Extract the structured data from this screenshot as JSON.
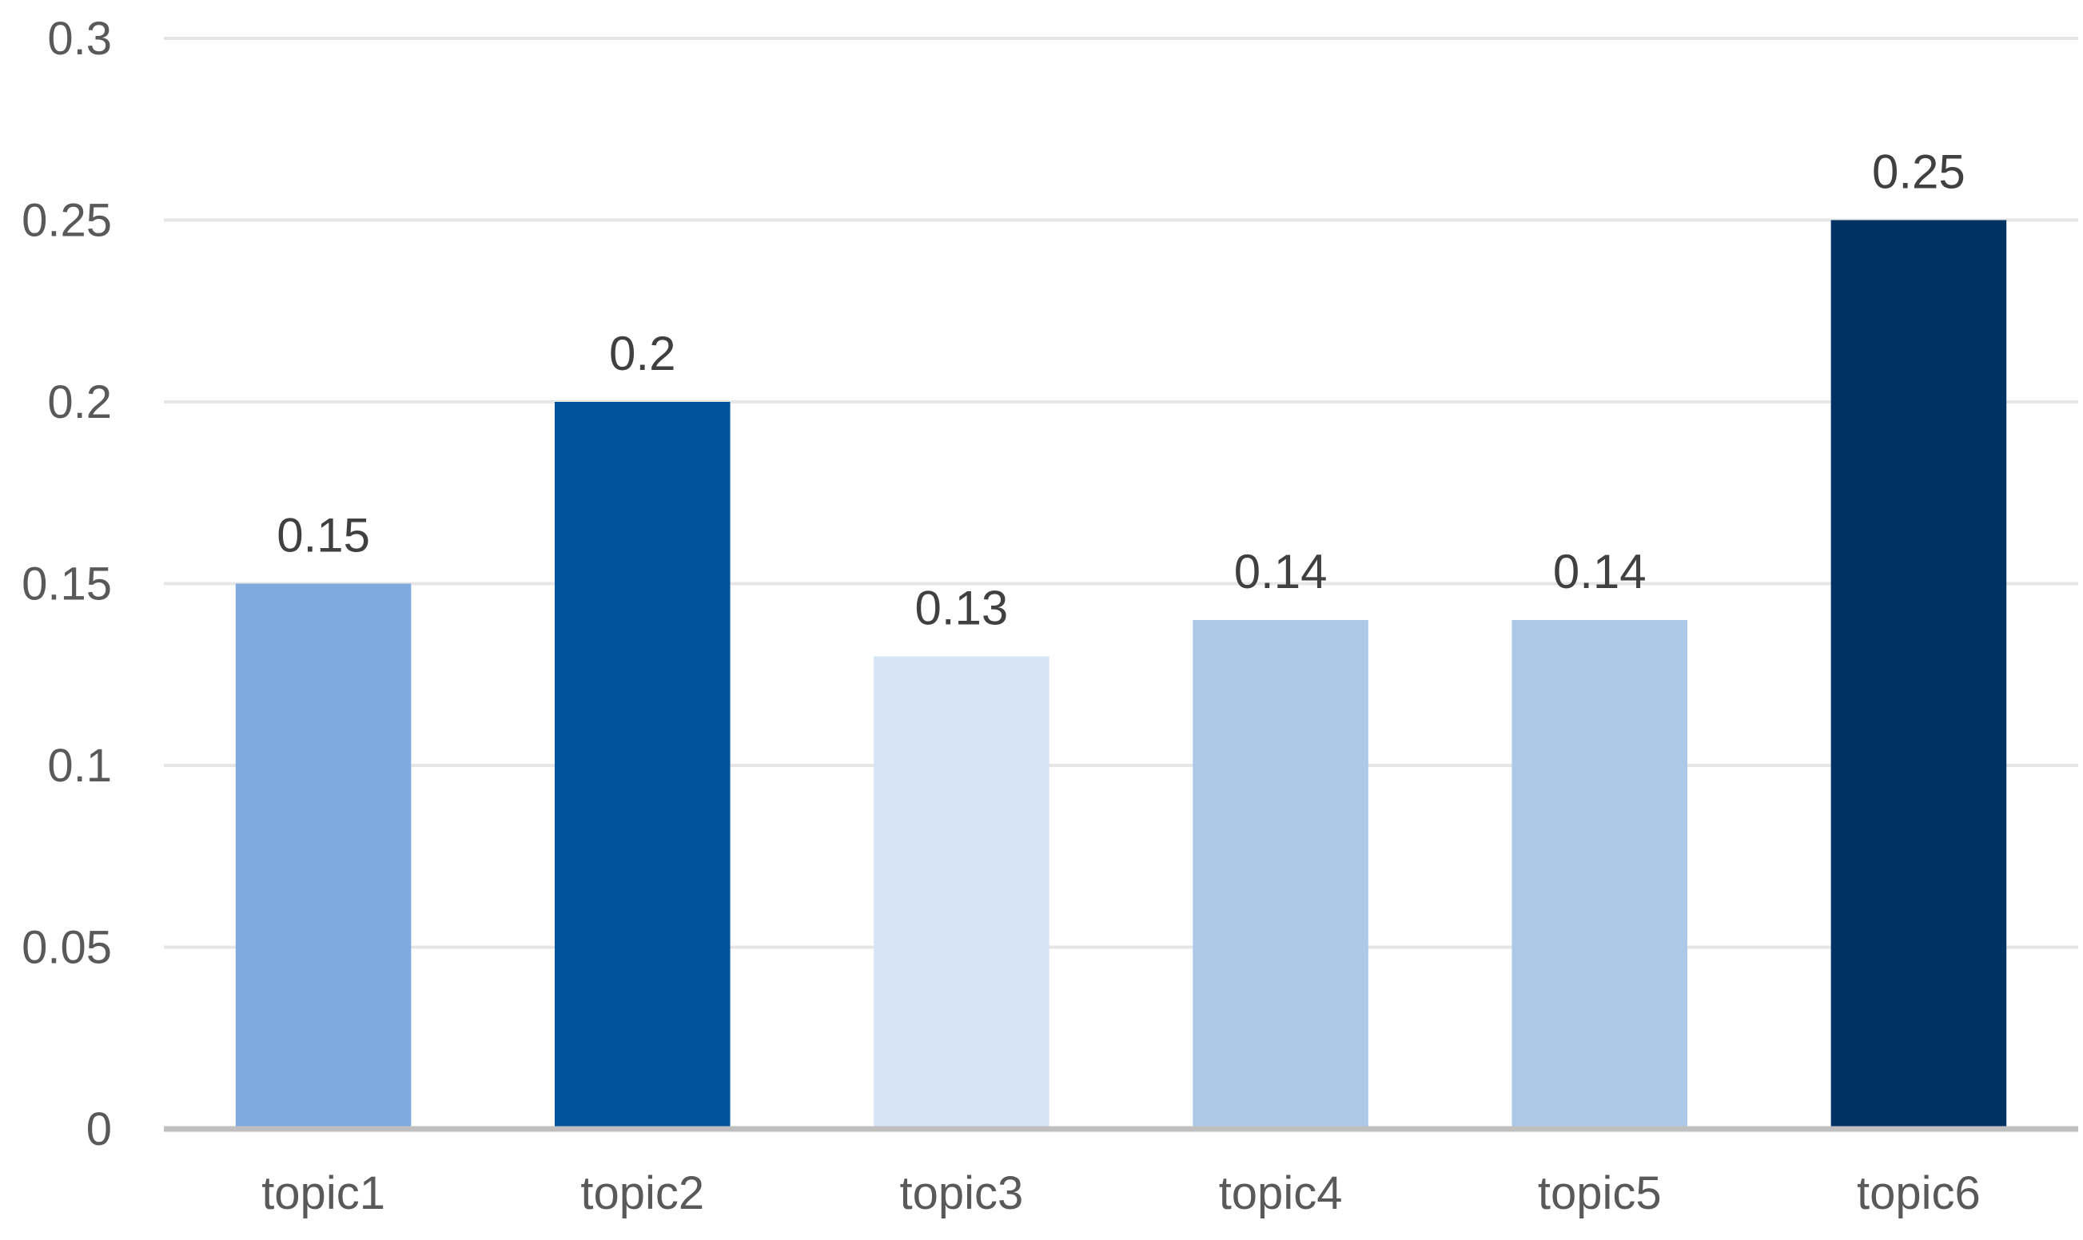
{
  "chart_data": {
    "type": "bar",
    "title": "",
    "xlabel": "",
    "ylabel": "",
    "categories": [
      "topic1",
      "topic2",
      "topic3",
      "topic4",
      "topic5",
      "topic6"
    ],
    "values": [
      0.15,
      0.2,
      0.13,
      0.14,
      0.14,
      0.25
    ],
    "data_labels": [
      "0.15",
      "0.2",
      "0.13",
      "0.14",
      "0.14",
      "0.25"
    ],
    "bar_colors": [
      "#7faadf",
      "#00529b",
      "#d7e4f5",
      "#aec8e8",
      "#aec8e8",
      "#003264"
    ],
    "ylim": [
      0,
      0.3
    ],
    "yticks": [
      0,
      0.05,
      0.1,
      0.15,
      0.2,
      0.25,
      0.3
    ],
    "ytick_labels": [
      "0",
      "0.05",
      "0.1",
      "0.15",
      "0.2",
      "0.25",
      "0.3"
    ],
    "grid": true,
    "legend": "none"
  }
}
